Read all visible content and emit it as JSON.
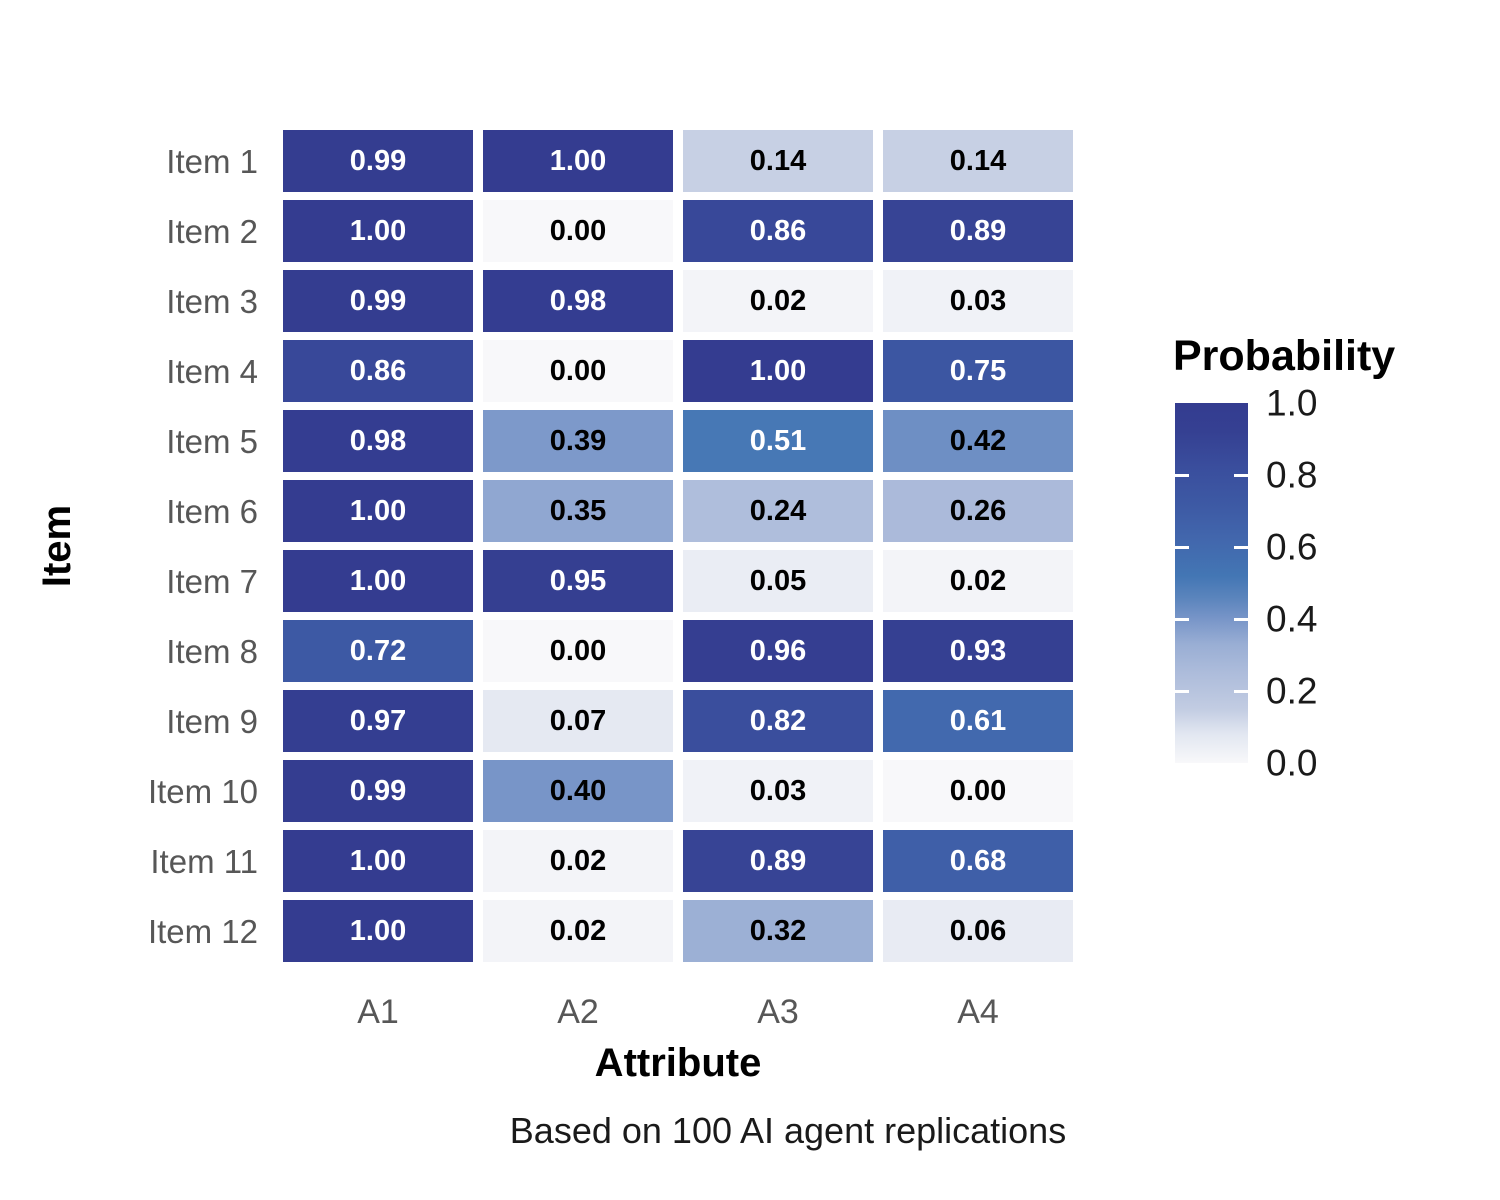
{
  "chart_data": {
    "type": "heatmap",
    "xlabel": "Attribute",
    "ylabel": "Item",
    "caption": "Based on 100 AI agent replications",
    "x_categories": [
      "A1",
      "A2",
      "A3",
      "A4"
    ],
    "y_categories": [
      "Item 1",
      "Item 2",
      "Item 3",
      "Item 4",
      "Item 5",
      "Item 6",
      "Item 7",
      "Item 8",
      "Item 9",
      "Item 10",
      "Item 11",
      "Item 12"
    ],
    "values": [
      [
        0.99,
        1.0,
        0.14,
        0.14
      ],
      [
        1.0,
        0.0,
        0.86,
        0.89
      ],
      [
        0.99,
        0.98,
        0.02,
        0.03
      ],
      [
        0.86,
        0.0,
        1.0,
        0.75
      ],
      [
        0.98,
        0.39,
        0.51,
        0.42
      ],
      [
        1.0,
        0.35,
        0.24,
        0.26
      ],
      [
        1.0,
        0.95,
        0.05,
        0.02
      ],
      [
        0.72,
        0.0,
        0.96,
        0.93
      ],
      [
        0.97,
        0.07,
        0.82,
        0.61
      ],
      [
        0.99,
        0.4,
        0.03,
        0.0
      ],
      [
        1.0,
        0.02,
        0.89,
        0.68
      ],
      [
        1.0,
        0.02,
        0.32,
        0.06
      ]
    ],
    "value_decimals": 2,
    "legend": {
      "title": "Probability",
      "tick_labels": [
        "1.0",
        "0.8",
        "0.6",
        "0.4",
        "0.2",
        "0.0"
      ],
      "range": [
        0.0,
        1.0
      ]
    },
    "colors": {
      "gradient_stops": [
        {
          "t": 0.0,
          "hex": "#F8F8FA"
        },
        {
          "t": 0.08,
          "hex": "#E2E7F1"
        },
        {
          "t": 0.15,
          "hex": "#C2CCE2"
        },
        {
          "t": 0.25,
          "hex": "#ADBCDB"
        },
        {
          "t": 0.33,
          "hex": "#99AED4"
        },
        {
          "t": 0.4,
          "hex": "#7895C8"
        },
        {
          "t": 0.46,
          "hex": "#5A84BC"
        },
        {
          "t": 0.52,
          "hex": "#4376B4"
        },
        {
          "t": 0.62,
          "hex": "#4267AD"
        },
        {
          "t": 0.72,
          "hex": "#3D59A4"
        },
        {
          "t": 0.82,
          "hex": "#3A4E9D"
        },
        {
          "t": 0.92,
          "hex": "#354092"
        },
        {
          "t": 1.0,
          "hex": "#343C90"
        }
      ],
      "cell_text_light": "#ffffff",
      "cell_text_dark": "#000000",
      "text_color_threshold": 0.5,
      "axis_text": "#575757",
      "background": "#ffffff"
    }
  }
}
